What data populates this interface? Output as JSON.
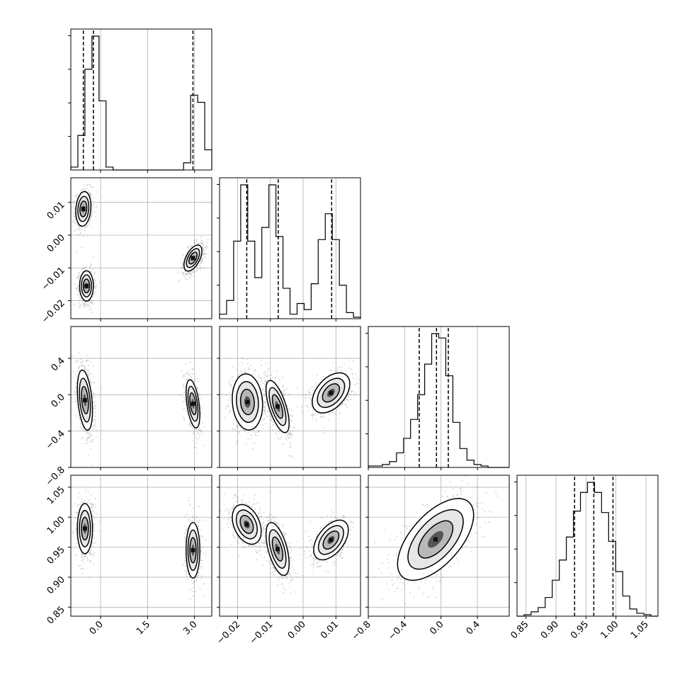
{
  "chart_data": {
    "type": "corner",
    "n_params": 4,
    "param_labels": [
      "",
      "",
      "",
      ""
    ],
    "colors": {
      "line": "#000000",
      "grid": "#b0b0b0",
      "background": "#ffffff",
      "density_dark": "#000000",
      "density_light": "#ffffff"
    },
    "grid": true,
    "ranges": [
      [
        -0.95,
        3.55
      ],
      [
        -0.0255,
        0.0175
      ],
      [
        -0.8,
        0.75
      ],
      [
        0.835,
        1.07
      ]
    ],
    "ticks": [
      {
        "values": [
          0.0,
          1.5,
          3.0
        ],
        "labels": [
          "0.0",
          "1.5",
          "3.0"
        ]
      },
      {
        "values": [
          -0.02,
          -0.01,
          0.0,
          0.01
        ],
        "labels": [
          "−0.02",
          "−0.01",
          "0.00",
          "0.01"
        ]
      },
      {
        "values": [
          -0.8,
          -0.4,
          0.0,
          0.4
        ],
        "labels": [
          "−0.8",
          "−0.4",
          "0.0",
          "0.4"
        ]
      },
      {
        "values": [
          0.85,
          0.9,
          0.95,
          1.0,
          1.05
        ],
        "labels": [
          "0.85",
          "0.90",
          "0.95",
          "1.00",
          "1.05"
        ]
      }
    ],
    "histograms": [
      {
        "param": 0,
        "quantiles": [
          -0.55,
          -0.23,
          2.95
        ],
        "edges": [
          -0.95,
          -0.725,
          -0.5,
          -0.275,
          -0.05,
          0.175,
          0.4,
          0.625,
          0.85,
          1.075,
          1.3,
          1.525,
          1.75,
          1.975,
          2.2,
          2.425,
          2.65,
          2.875,
          3.1,
          3.325,
          3.55
        ],
        "counts": [
          0.02,
          0.24,
          0.7,
          0.93,
          0.48,
          0.02,
          0,
          0,
          0,
          0,
          0,
          0,
          0,
          0,
          0,
          0,
          0.05,
          0.52,
          0.47,
          0.14
        ]
      },
      {
        "param": 1,
        "quantiles": [
          -0.0172,
          -0.0076,
          0.0087
        ],
        "edges": [
          -0.0255,
          -0.02335,
          -0.0212,
          -0.01905,
          -0.0169,
          -0.01475,
          -0.0126,
          -0.01045,
          -0.0083,
          -0.00615,
          -0.004,
          -0.00185,
          0.0003,
          0.00245,
          0.0046,
          0.00675,
          0.0089,
          0.01105,
          0.0132,
          0.01535,
          0.0175
        ],
        "counts": [
          0.03,
          0.12,
          0.51,
          0.88,
          0.51,
          0.27,
          0.6,
          0.88,
          0.54,
          0.2,
          0.03,
          0.1,
          0.06,
          0.23,
          0.52,
          0.69,
          0.52,
          0.22,
          0.04,
          0.01
        ]
      },
      {
        "param": 2,
        "quantiles": [
          -0.24,
          -0.05,
          0.08
        ],
        "edges": [
          -0.8,
          -0.7225,
          -0.645,
          -0.5675,
          -0.49,
          -0.4125,
          -0.335,
          -0.2575,
          -0.18,
          -0.1025,
          -0.025,
          0.0525,
          0.13,
          0.2075,
          0.285,
          0.3625,
          0.44,
          0.5175,
          0.595,
          0.6725,
          0.75
        ],
        "counts": [
          0.01,
          0.01,
          0.02,
          0.04,
          0.1,
          0.2,
          0.33,
          0.5,
          0.71,
          0.92,
          0.89,
          0.63,
          0.31,
          0.13,
          0.05,
          0.02,
          0.01,
          0,
          0,
          0
        ]
      },
      {
        "param": 3,
        "quantiles": [
          0.931,
          0.963,
          0.995
        ],
        "edges": [
          0.835,
          0.84675,
          0.8585,
          0.87025,
          0.882,
          0.89375,
          0.9055,
          0.91725,
          0.929,
          0.94075,
          0.9525,
          0.96425,
          0.976,
          0.98775,
          0.9995,
          1.01125,
          1.023,
          1.03475,
          1.0465,
          1.05825,
          1.07
        ],
        "counts": [
          0,
          0.01,
          0.03,
          0.06,
          0.13,
          0.25,
          0.39,
          0.55,
          0.73,
          0.86,
          0.93,
          0.86,
          0.72,
          0.52,
          0.31,
          0.14,
          0.05,
          0.02,
          0.01,
          0
        ]
      }
    ],
    "pairs": [
      {
        "x": 0,
        "y": 1,
        "clusters": [
          {
            "mx": -0.55,
            "my": 0.008,
            "sx": 0.11,
            "sy": 0.0024,
            "rho": 0.15,
            "w": 1.0
          },
          {
            "mx": -0.45,
            "my": -0.0155,
            "sx": 0.1,
            "sy": 0.0021,
            "rho": 0.0,
            "w": 1.05
          },
          {
            "mx": 2.95,
            "my": -0.007,
            "sx": 0.13,
            "sy": 0.0018,
            "rho": 0.55,
            "w": 1.25
          }
        ]
      },
      {
        "x": 0,
        "y": 2,
        "clusters": [
          {
            "mx": -0.5,
            "my": -0.06,
            "sx": 0.11,
            "sy": 0.15,
            "rho": -0.35,
            "w": 1.3
          },
          {
            "mx": 2.95,
            "my": -0.1,
            "sx": 0.1,
            "sy": 0.12,
            "rho": -0.45,
            "w": 0.75
          }
        ]
      },
      {
        "x": 1,
        "y": 2,
        "clusters": [
          {
            "mx": -0.017,
            "my": -0.08,
            "sx": 0.0021,
            "sy": 0.14,
            "rho": -0.1,
            "w": 1.0
          },
          {
            "mx": -0.0078,
            "my": -0.13,
            "sx": 0.0016,
            "sy": 0.13,
            "rho": -0.65,
            "w": 1.1
          },
          {
            "mx": 0.0085,
            "my": 0.02,
            "sx": 0.0026,
            "sy": 0.1,
            "rho": 0.45,
            "w": 0.9
          }
        ]
      },
      {
        "x": 0,
        "y": 3,
        "clusters": [
          {
            "mx": -0.5,
            "my": 0.981,
            "sx": 0.11,
            "sy": 0.019,
            "rho": 0.0,
            "w": 1.3
          },
          {
            "mx": 2.95,
            "my": 0.945,
            "sx": 0.1,
            "sy": 0.021,
            "rho": 0.0,
            "w": 0.8
          }
        ]
      },
      {
        "x": 1,
        "y": 3,
        "clusters": [
          {
            "mx": -0.0172,
            "my": 0.988,
            "sx": 0.002,
            "sy": 0.015,
            "rho": -0.35,
            "w": 1.2
          },
          {
            "mx": -0.0078,
            "my": 0.947,
            "sx": 0.0016,
            "sy": 0.02,
            "rho": -0.55,
            "w": 1.0
          },
          {
            "mx": 0.0085,
            "my": 0.962,
            "sx": 0.0024,
            "sy": 0.015,
            "rho": 0.5,
            "w": 0.8
          }
        ]
      },
      {
        "x": 2,
        "y": 3,
        "clusters": [
          {
            "mx": -0.06,
            "my": 0.963,
            "sx": 0.19,
            "sy": 0.031,
            "rho": 0.6,
            "w": 1.0
          }
        ]
      }
    ]
  }
}
